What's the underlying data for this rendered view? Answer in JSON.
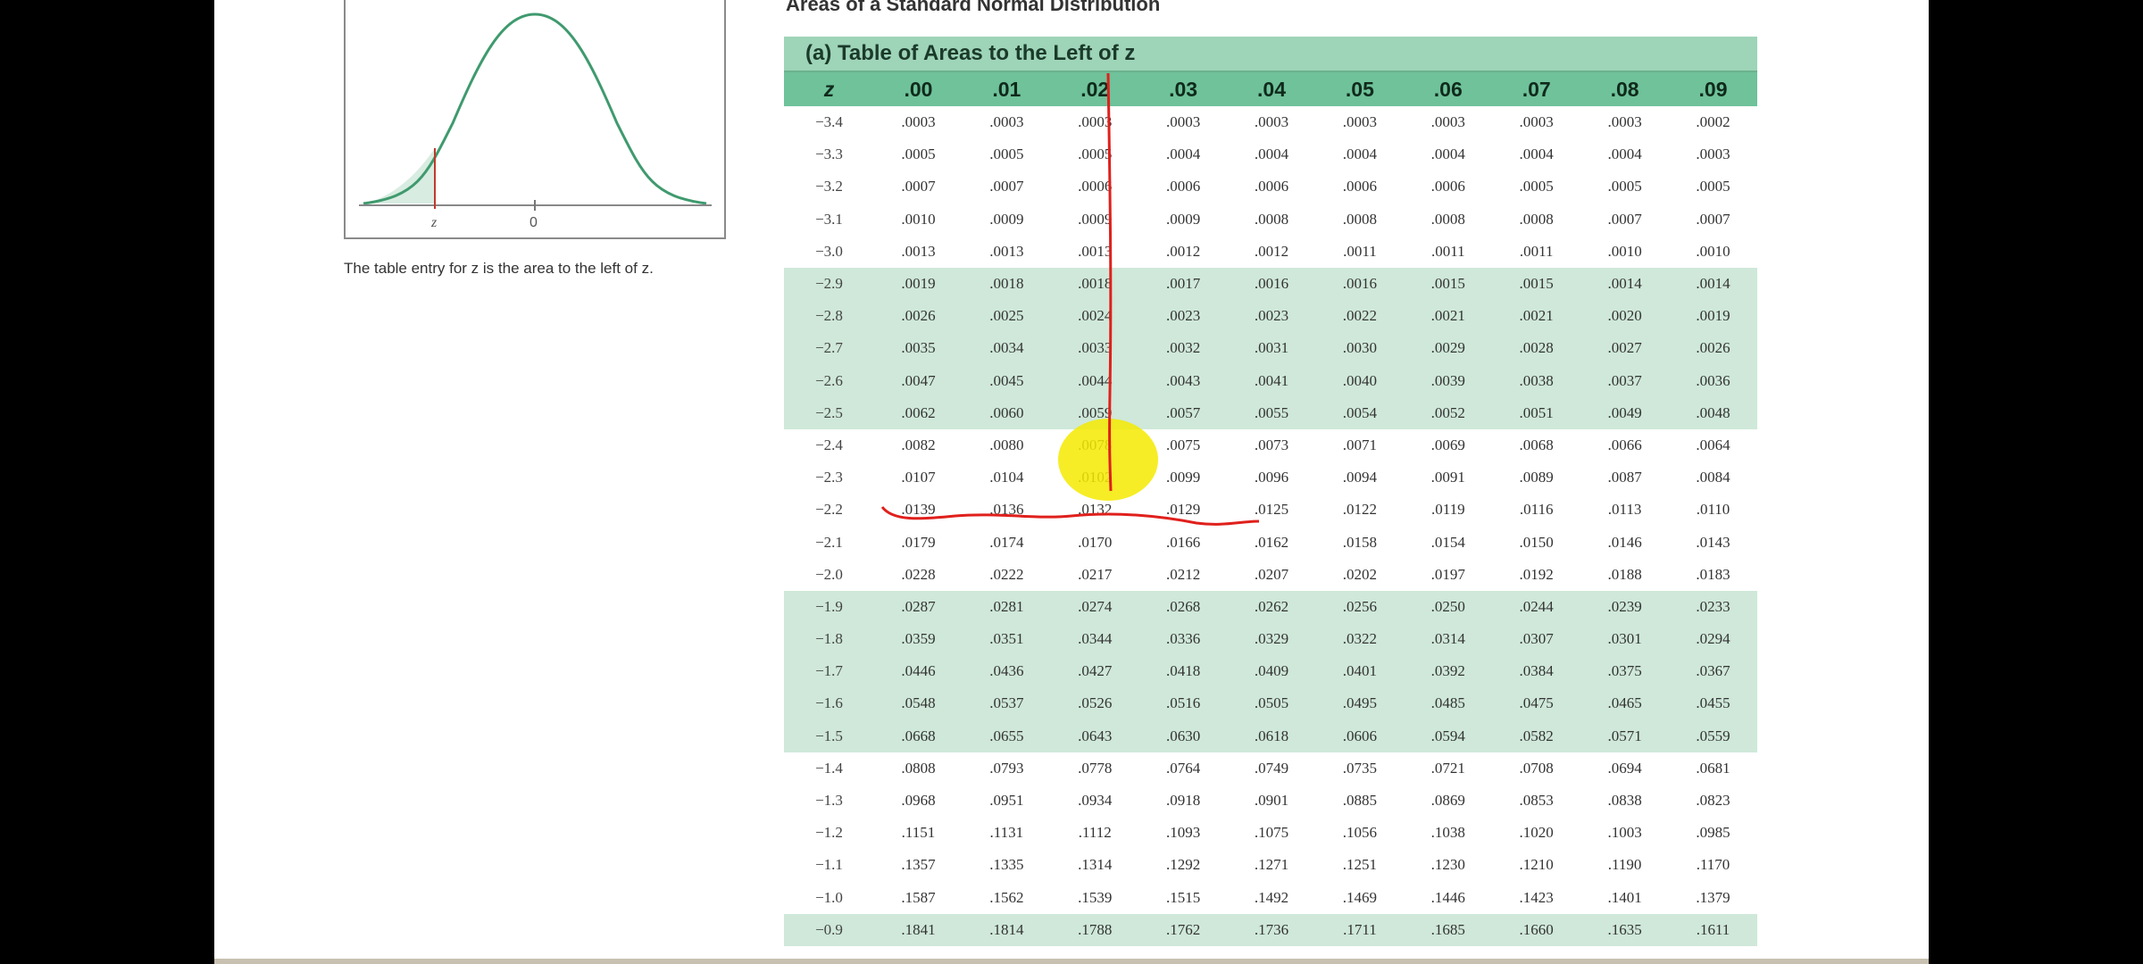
{
  "document": {
    "header": "Areas of a Standard Normal Distribution",
    "subtitle": "(a) Table of Areas to the Left of z",
    "caption": "The table entry for z is the area to the left of z.",
    "figure_labels": {
      "z": "z",
      "zero": "0"
    },
    "columns": [
      "z",
      ".00",
      ".01",
      ".02",
      ".03",
      ".04",
      ".05",
      ".06",
      ".07",
      ".08",
      ".09"
    ],
    "rows": [
      {
        "z": "−3.4",
        "v": [
          ".0003",
          ".0003",
          ".0003",
          ".0003",
          ".0003",
          ".0003",
          ".0003",
          ".0003",
          ".0003",
          ".0002"
        ]
      },
      {
        "z": "−3.3",
        "v": [
          ".0005",
          ".0005",
          ".0005",
          ".0004",
          ".0004",
          ".0004",
          ".0004",
          ".0004",
          ".0004",
          ".0003"
        ]
      },
      {
        "z": "−3.2",
        "v": [
          ".0007",
          ".0007",
          ".0006",
          ".0006",
          ".0006",
          ".0006",
          ".0006",
          ".0005",
          ".0005",
          ".0005"
        ]
      },
      {
        "z": "−3.1",
        "v": [
          ".0010",
          ".0009",
          ".0009",
          ".0009",
          ".0008",
          ".0008",
          ".0008",
          ".0008",
          ".0007",
          ".0007"
        ]
      },
      {
        "z": "−3.0",
        "v": [
          ".0013",
          ".0013",
          ".0013",
          ".0012",
          ".0012",
          ".0011",
          ".0011",
          ".0011",
          ".0010",
          ".0010"
        ]
      },
      {
        "z": "−2.9",
        "v": [
          ".0019",
          ".0018",
          ".0018",
          ".0017",
          ".0016",
          ".0016",
          ".0015",
          ".0015",
          ".0014",
          ".0014"
        ]
      },
      {
        "z": "−2.8",
        "v": [
          ".0026",
          ".0025",
          ".0024",
          ".0023",
          ".0023",
          ".0022",
          ".0021",
          ".0021",
          ".0020",
          ".0019"
        ]
      },
      {
        "z": "−2.7",
        "v": [
          ".0035",
          ".0034",
          ".0033",
          ".0032",
          ".0031",
          ".0030",
          ".0029",
          ".0028",
          ".0027",
          ".0026"
        ]
      },
      {
        "z": "−2.6",
        "v": [
          ".0047",
          ".0045",
          ".0044",
          ".0043",
          ".0041",
          ".0040",
          ".0039",
          ".0038",
          ".0037",
          ".0036"
        ]
      },
      {
        "z": "−2.5",
        "v": [
          ".0062",
          ".0060",
          ".0059",
          ".0057",
          ".0055",
          ".0054",
          ".0052",
          ".0051",
          ".0049",
          ".0048"
        ]
      },
      {
        "z": "−2.4",
        "v": [
          ".0082",
          ".0080",
          ".0078",
          ".0075",
          ".0073",
          ".0071",
          ".0069",
          ".0068",
          ".0066",
          ".0064"
        ]
      },
      {
        "z": "−2.3",
        "v": [
          ".0107",
          ".0104",
          ".0102",
          ".0099",
          ".0096",
          ".0094",
          ".0091",
          ".0089",
          ".0087",
          ".0084"
        ]
      },
      {
        "z": "−2.2",
        "v": [
          ".0139",
          ".0136",
          ".0132",
          ".0129",
          ".0125",
          ".0122",
          ".0119",
          ".0116",
          ".0113",
          ".0110"
        ]
      },
      {
        "z": "−2.1",
        "v": [
          ".0179",
          ".0174",
          ".0170",
          ".0166",
          ".0162",
          ".0158",
          ".0154",
          ".0150",
          ".0146",
          ".0143"
        ]
      },
      {
        "z": "−2.0",
        "v": [
          ".0228",
          ".0222",
          ".0217",
          ".0212",
          ".0207",
          ".0202",
          ".0197",
          ".0192",
          ".0188",
          ".0183"
        ]
      },
      {
        "z": "−1.9",
        "v": [
          ".0287",
          ".0281",
          ".0274",
          ".0268",
          ".0262",
          ".0256",
          ".0250",
          ".0244",
          ".0239",
          ".0233"
        ]
      },
      {
        "z": "−1.8",
        "v": [
          ".0359",
          ".0351",
          ".0344",
          ".0336",
          ".0329",
          ".0322",
          ".0314",
          ".0307",
          ".0301",
          ".0294"
        ]
      },
      {
        "z": "−1.7",
        "v": [
          ".0446",
          ".0436",
          ".0427",
          ".0418",
          ".0409",
          ".0401",
          ".0392",
          ".0384",
          ".0375",
          ".0367"
        ]
      },
      {
        "z": "−1.6",
        "v": [
          ".0548",
          ".0537",
          ".0526",
          ".0516",
          ".0505",
          ".0495",
          ".0485",
          ".0475",
          ".0465",
          ".0455"
        ]
      },
      {
        "z": "−1.5",
        "v": [
          ".0668",
          ".0655",
          ".0643",
          ".0630",
          ".0618",
          ".0606",
          ".0594",
          ".0582",
          ".0571",
          ".0559"
        ]
      },
      {
        "z": "−1.4",
        "v": [
          ".0808",
          ".0793",
          ".0778",
          ".0764",
          ".0749",
          ".0735",
          ".0721",
          ".0708",
          ".0694",
          ".0681"
        ]
      },
      {
        "z": "−1.3",
        "v": [
          ".0968",
          ".0951",
          ".0934",
          ".0918",
          ".0901",
          ".0885",
          ".0869",
          ".0853",
          ".0838",
          ".0823"
        ]
      },
      {
        "z": "−1.2",
        "v": [
          ".1151",
          ".1131",
          ".1112",
          ".1093",
          ".1075",
          ".1056",
          ".1038",
          ".1020",
          ".1003",
          ".0985"
        ]
      },
      {
        "z": "−1.1",
        "v": [
          ".1357",
          ".1335",
          ".1314",
          ".1292",
          ".1271",
          ".1251",
          ".1230",
          ".1210",
          ".1190",
          ".1170"
        ]
      },
      {
        "z": "−1.0",
        "v": [
          ".1587",
          ".1562",
          ".1539",
          ".1515",
          ".1492",
          ".1469",
          ".1446",
          ".1423",
          ".1401",
          ".1379"
        ]
      },
      {
        "z": "−0.9",
        "v": [
          ".1841",
          ".1814",
          ".1788",
          ".1762",
          ".1736",
          ".1711",
          ".1685",
          ".1660",
          ".1635",
          ".1611"
        ]
      }
    ],
    "shaded_rows": [
      "−2.9",
      "−2.8",
      "−2.7",
      "−2.6",
      "−2.5",
      "−1.9",
      "−1.8",
      "−1.7",
      "−1.6",
      "−1.5",
      "−0.9"
    ],
    "annotations": {
      "ink_color": "#e0201c",
      "highlight_color": "#f4ea00",
      "vertical_line_column": ".05",
      "underlined_row": "−1.4",
      "highlighted_cell": {
        "row": "−1.6",
        "column": ".05"
      }
    }
  }
}
